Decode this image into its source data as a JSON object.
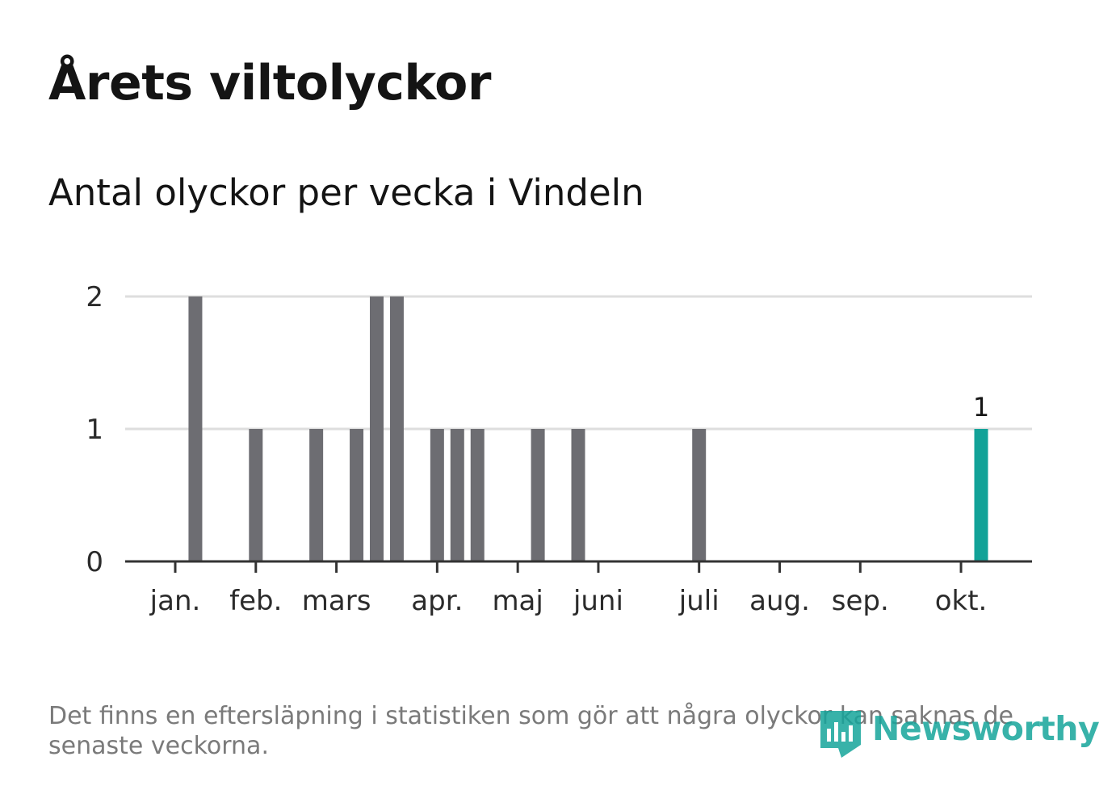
{
  "chart_data": {
    "type": "bar",
    "title": "Årets viltolyckor",
    "subtitle": "Antal olyckor per vecka i Vindeln",
    "xlabel": "",
    "ylabel": "",
    "ylim": [
      0,
      2
    ],
    "yticks": [
      "0",
      "1",
      "2"
    ],
    "grid": true,
    "month_ticks": [
      "jan.",
      "feb.",
      "mars",
      "apr.",
      "maj",
      "juni",
      "juli",
      "aug.",
      "sep.",
      "okt."
    ],
    "month_tick_weeks": [
      1,
      5,
      9,
      14,
      18,
      22,
      27,
      31,
      35,
      40
    ],
    "categories": [
      1,
      2,
      3,
      4,
      5,
      6,
      7,
      8,
      9,
      10,
      11,
      12,
      13,
      14,
      15,
      16,
      17,
      18,
      19,
      20,
      21,
      22,
      23,
      24,
      25,
      26,
      27,
      28,
      29,
      30,
      31,
      32,
      33,
      34,
      35,
      36,
      37,
      38,
      39,
      40,
      41,
      42,
      43,
      44
    ],
    "series": [
      {
        "name": "Olyckor",
        "values": [
          0,
          2,
          0,
          0,
          1,
          0,
          0,
          1,
          0,
          1,
          2,
          2,
          0,
          1,
          1,
          1,
          0,
          0,
          1,
          0,
          1,
          0,
          0,
          0,
          0,
          0,
          1,
          0,
          0,
          0,
          0,
          0,
          0,
          0,
          0,
          0,
          0,
          0,
          0,
          0,
          1,
          0,
          0,
          0
        ]
      }
    ],
    "highlight_week": 41,
    "highlight_label": "1",
    "bar_color": "#6d6d72",
    "highlight_color": "#12a298"
  },
  "footnote": "Det finns en eftersläpning i statistiken som gör att några olyckor kan saknas de senaste veckorna.",
  "logo": {
    "text": "Newsworthy",
    "color": "#16a59b"
  }
}
